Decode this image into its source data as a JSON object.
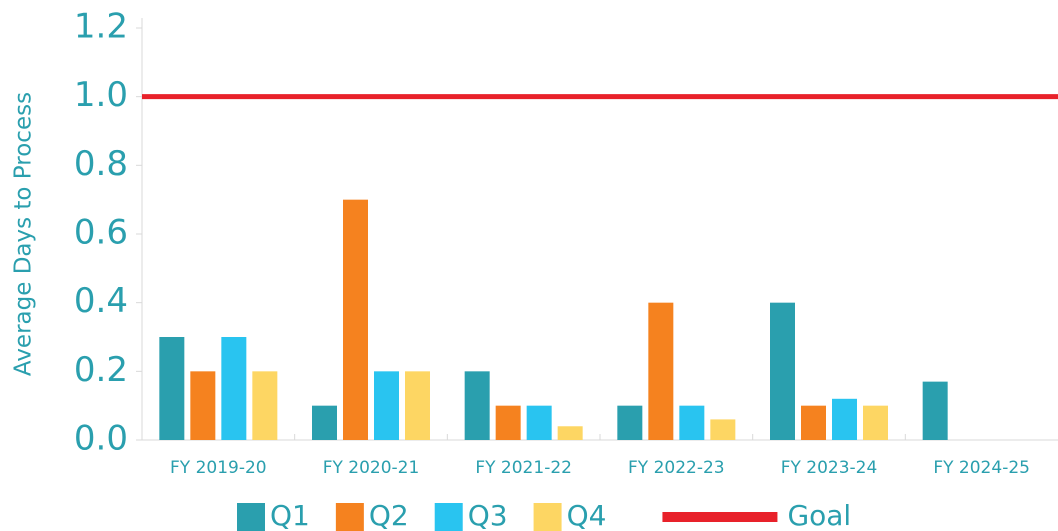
{
  "chart_data": {
    "type": "bar",
    "y_label": "Average Days to Process",
    "categories": [
      "FY 2019-20",
      "FY 2020-21",
      "FY 2021-22",
      "FY 2022-23",
      "FY 2023-24",
      "FY 2024-25"
    ],
    "series": [
      {
        "name": "Q1",
        "color": "#2a9fae",
        "values": [
          0.3,
          0.1,
          0.2,
          0.1,
          0.4,
          0.17
        ]
      },
      {
        "name": "Q2",
        "color": "#f5821f",
        "values": [
          0.2,
          0.7,
          0.1,
          0.4,
          0.1,
          null
        ]
      },
      {
        "name": "Q3",
        "color": "#29c4f0",
        "values": [
          0.3,
          0.2,
          0.1,
          0.1,
          0.12,
          null
        ]
      },
      {
        "name": "Q4",
        "color": "#fdd663",
        "values": [
          0.2,
          0.2,
          0.04,
          0.06,
          0.1,
          null
        ]
      }
    ],
    "goal": {
      "name": "Goal",
      "value": 1.0,
      "color": "#e8212a"
    },
    "ylim": [
      0,
      1.2
    ],
    "yticks": [
      {
        "value": 0,
        "label": "0.0"
      },
      {
        "value": 0.2,
        "label": "0.2"
      },
      {
        "value": 0.4,
        "label": "0.4"
      },
      {
        "value": 0.6,
        "label": "0.6"
      },
      {
        "value": 0.8,
        "label": "0.8"
      },
      {
        "value": 1.0,
        "label": "1.0"
      },
      {
        "value": 1.2,
        "label": "1.2"
      }
    ],
    "grid": false
  }
}
